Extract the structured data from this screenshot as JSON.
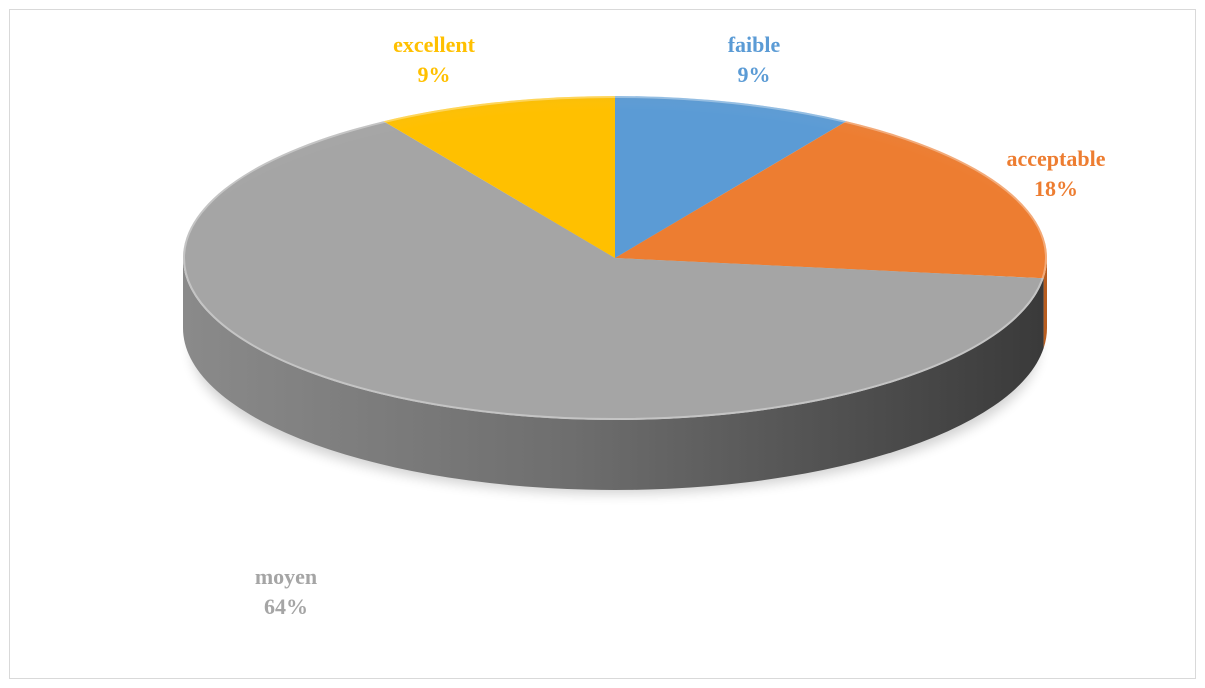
{
  "chart_data": {
    "type": "pie",
    "style": "3d",
    "title": "",
    "categories": [
      "faible",
      "acceptable",
      "moyen",
      "excellent"
    ],
    "values": [
      9,
      18,
      64,
      9
    ],
    "labels": [
      {
        "name": "faible",
        "percent": "9%"
      },
      {
        "name": "acceptable",
        "percent": "18%"
      },
      {
        "name": "moyen",
        "percent": "64%"
      },
      {
        "name": "excellent",
        "percent": "9%"
      }
    ],
    "colors": [
      "#5b9bd5",
      "#ed7d31",
      "#a5a5a5",
      "#ffc000"
    ],
    "side_colors": [
      "#3f7bb3",
      "#b85d1f",
      "#6a6a6a",
      "#c99700"
    ]
  }
}
